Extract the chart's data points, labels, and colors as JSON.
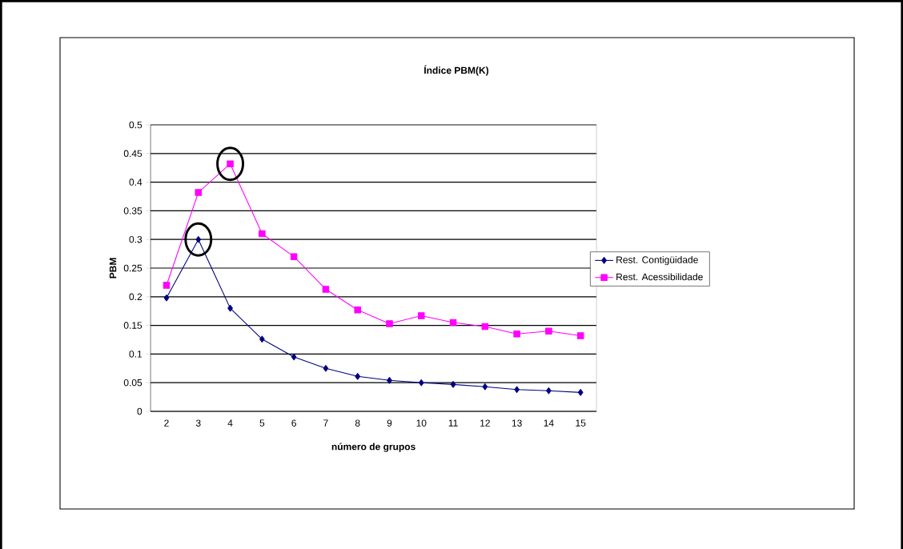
{
  "chart_data": {
    "type": "line",
    "title": "Índice PBM(K)",
    "xlabel": "número de grupos",
    "ylabel": "PBM",
    "categories": [
      "2",
      "3",
      "4",
      "5",
      "6",
      "7",
      "8",
      "9",
      "10",
      "11",
      "12",
      "13",
      "14",
      "15"
    ],
    "series": [
      {
        "name": "Rest. Contigüidade",
        "color": "#000080",
        "marker": "diamond",
        "values": [
          0.198,
          0.3,
          0.18,
          0.126,
          0.095,
          0.075,
          0.061,
          0.054,
          0.05,
          0.047,
          0.043,
          0.038,
          0.036,
          0.033
        ]
      },
      {
        "name": "Rest. Acessibilidade",
        "color": "#ff00ff",
        "marker": "square",
        "values": [
          0.22,
          0.382,
          0.432,
          0.31,
          0.27,
          0.213,
          0.177,
          0.153,
          0.167,
          0.155,
          0.148,
          0.135,
          0.14,
          0.132
        ]
      }
    ],
    "ylim": [
      0,
      0.5
    ],
    "yticks": [
      0,
      0.05,
      0.1,
      0.15,
      0.2,
      0.25,
      0.3,
      0.35,
      0.4,
      0.45,
      0.5
    ],
    "grid": "y",
    "legend": "right",
    "line_style": "solid"
  }
}
